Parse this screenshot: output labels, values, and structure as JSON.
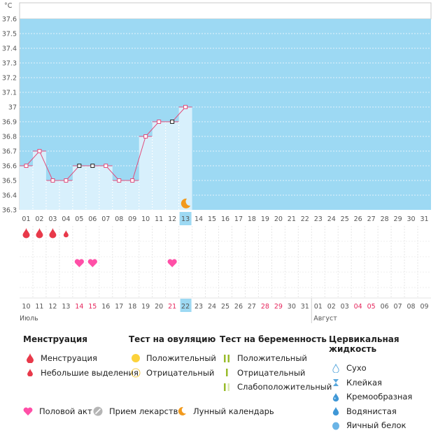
{
  "chart_data": {
    "type": "line",
    "ylabel": "°C",
    "ylim": [
      36.3,
      37.6
    ],
    "y_ticks": [
      "37.6",
      "37.5",
      "37.4",
      "37.3",
      "37.2",
      "37.1",
      "37",
      "36.9",
      "36.8",
      "36.7",
      "36.6",
      "36.5",
      "36.4",
      "36.3"
    ],
    "x_labels": [
      "01",
      "02",
      "03",
      "04",
      "05",
      "06",
      "07",
      "08",
      "09",
      "10",
      "11",
      "12",
      "13",
      "14",
      "15",
      "16",
      "17",
      "18",
      "19",
      "20",
      "21",
      "22",
      "23",
      "24",
      "25",
      "26",
      "27",
      "28",
      "29",
      "30",
      "31"
    ],
    "selected_day": "13",
    "series": [
      {
        "values": [
          36.6,
          36.7,
          36.5,
          36.5,
          36.6,
          36.6,
          36.6,
          36.5,
          36.5,
          36.8,
          36.9,
          36.9,
          37.0
        ],
        "point_styles": [
          "red",
          "red",
          "red",
          "red",
          "black",
          "black",
          "red",
          "red",
          "red",
          "red",
          "red",
          "black",
          "red"
        ]
      }
    ],
    "moon_day": "13",
    "menstruation_days": [
      "01",
      "02",
      "03"
    ],
    "light_discharge_days": [
      "04"
    ],
    "intercourse_days": [
      "05",
      "06",
      "12"
    ],
    "date_labels": [
      "10",
      "11",
      "12",
      "13",
      "14",
      "15",
      "16",
      "17",
      "18",
      "19",
      "20",
      "21",
      "22",
      "23",
      "24",
      "25",
      "26",
      "27",
      "28",
      "29",
      "30",
      "31",
      "01",
      "02",
      "03",
      "04",
      "05",
      "06",
      "07",
      "08",
      "09"
    ],
    "date_red": [
      "14",
      "15",
      "21",
      "28",
      "29",
      "04",
      "05"
    ],
    "selected_date": "22",
    "month_left": "Июль",
    "month_right": "Август"
  },
  "colors": {
    "sky": "#9dd9f3",
    "bar": "#d8f0fc",
    "line": "#e14d7c",
    "red_drop": "#e8394a",
    "heart": "#ff4fa7",
    "selected": "#9dd9f3",
    "date_red": "#e5265c"
  },
  "legend": {
    "menstruation": {
      "title": "Менструация",
      "items": [
        "Менструация",
        "Небольшие выделения"
      ]
    },
    "ovulation": {
      "title": "Тест на овуляцию",
      "items": [
        "Положительный",
        "Отрицательный"
      ]
    },
    "pregnancy": {
      "title": "Тест на беременность",
      "items": [
        "Положительный",
        "Отрицательный",
        "Слабоположительный"
      ]
    },
    "cervical": {
      "title": "Цервикальная жидкость",
      "items": [
        "Сухо",
        "Клейкая",
        "Кремообразная",
        "Водянистая",
        "Яичный белок"
      ]
    },
    "intercourse": "Половой акт",
    "medication": "Прием лекарств",
    "lunar": "Лунный календарь"
  }
}
